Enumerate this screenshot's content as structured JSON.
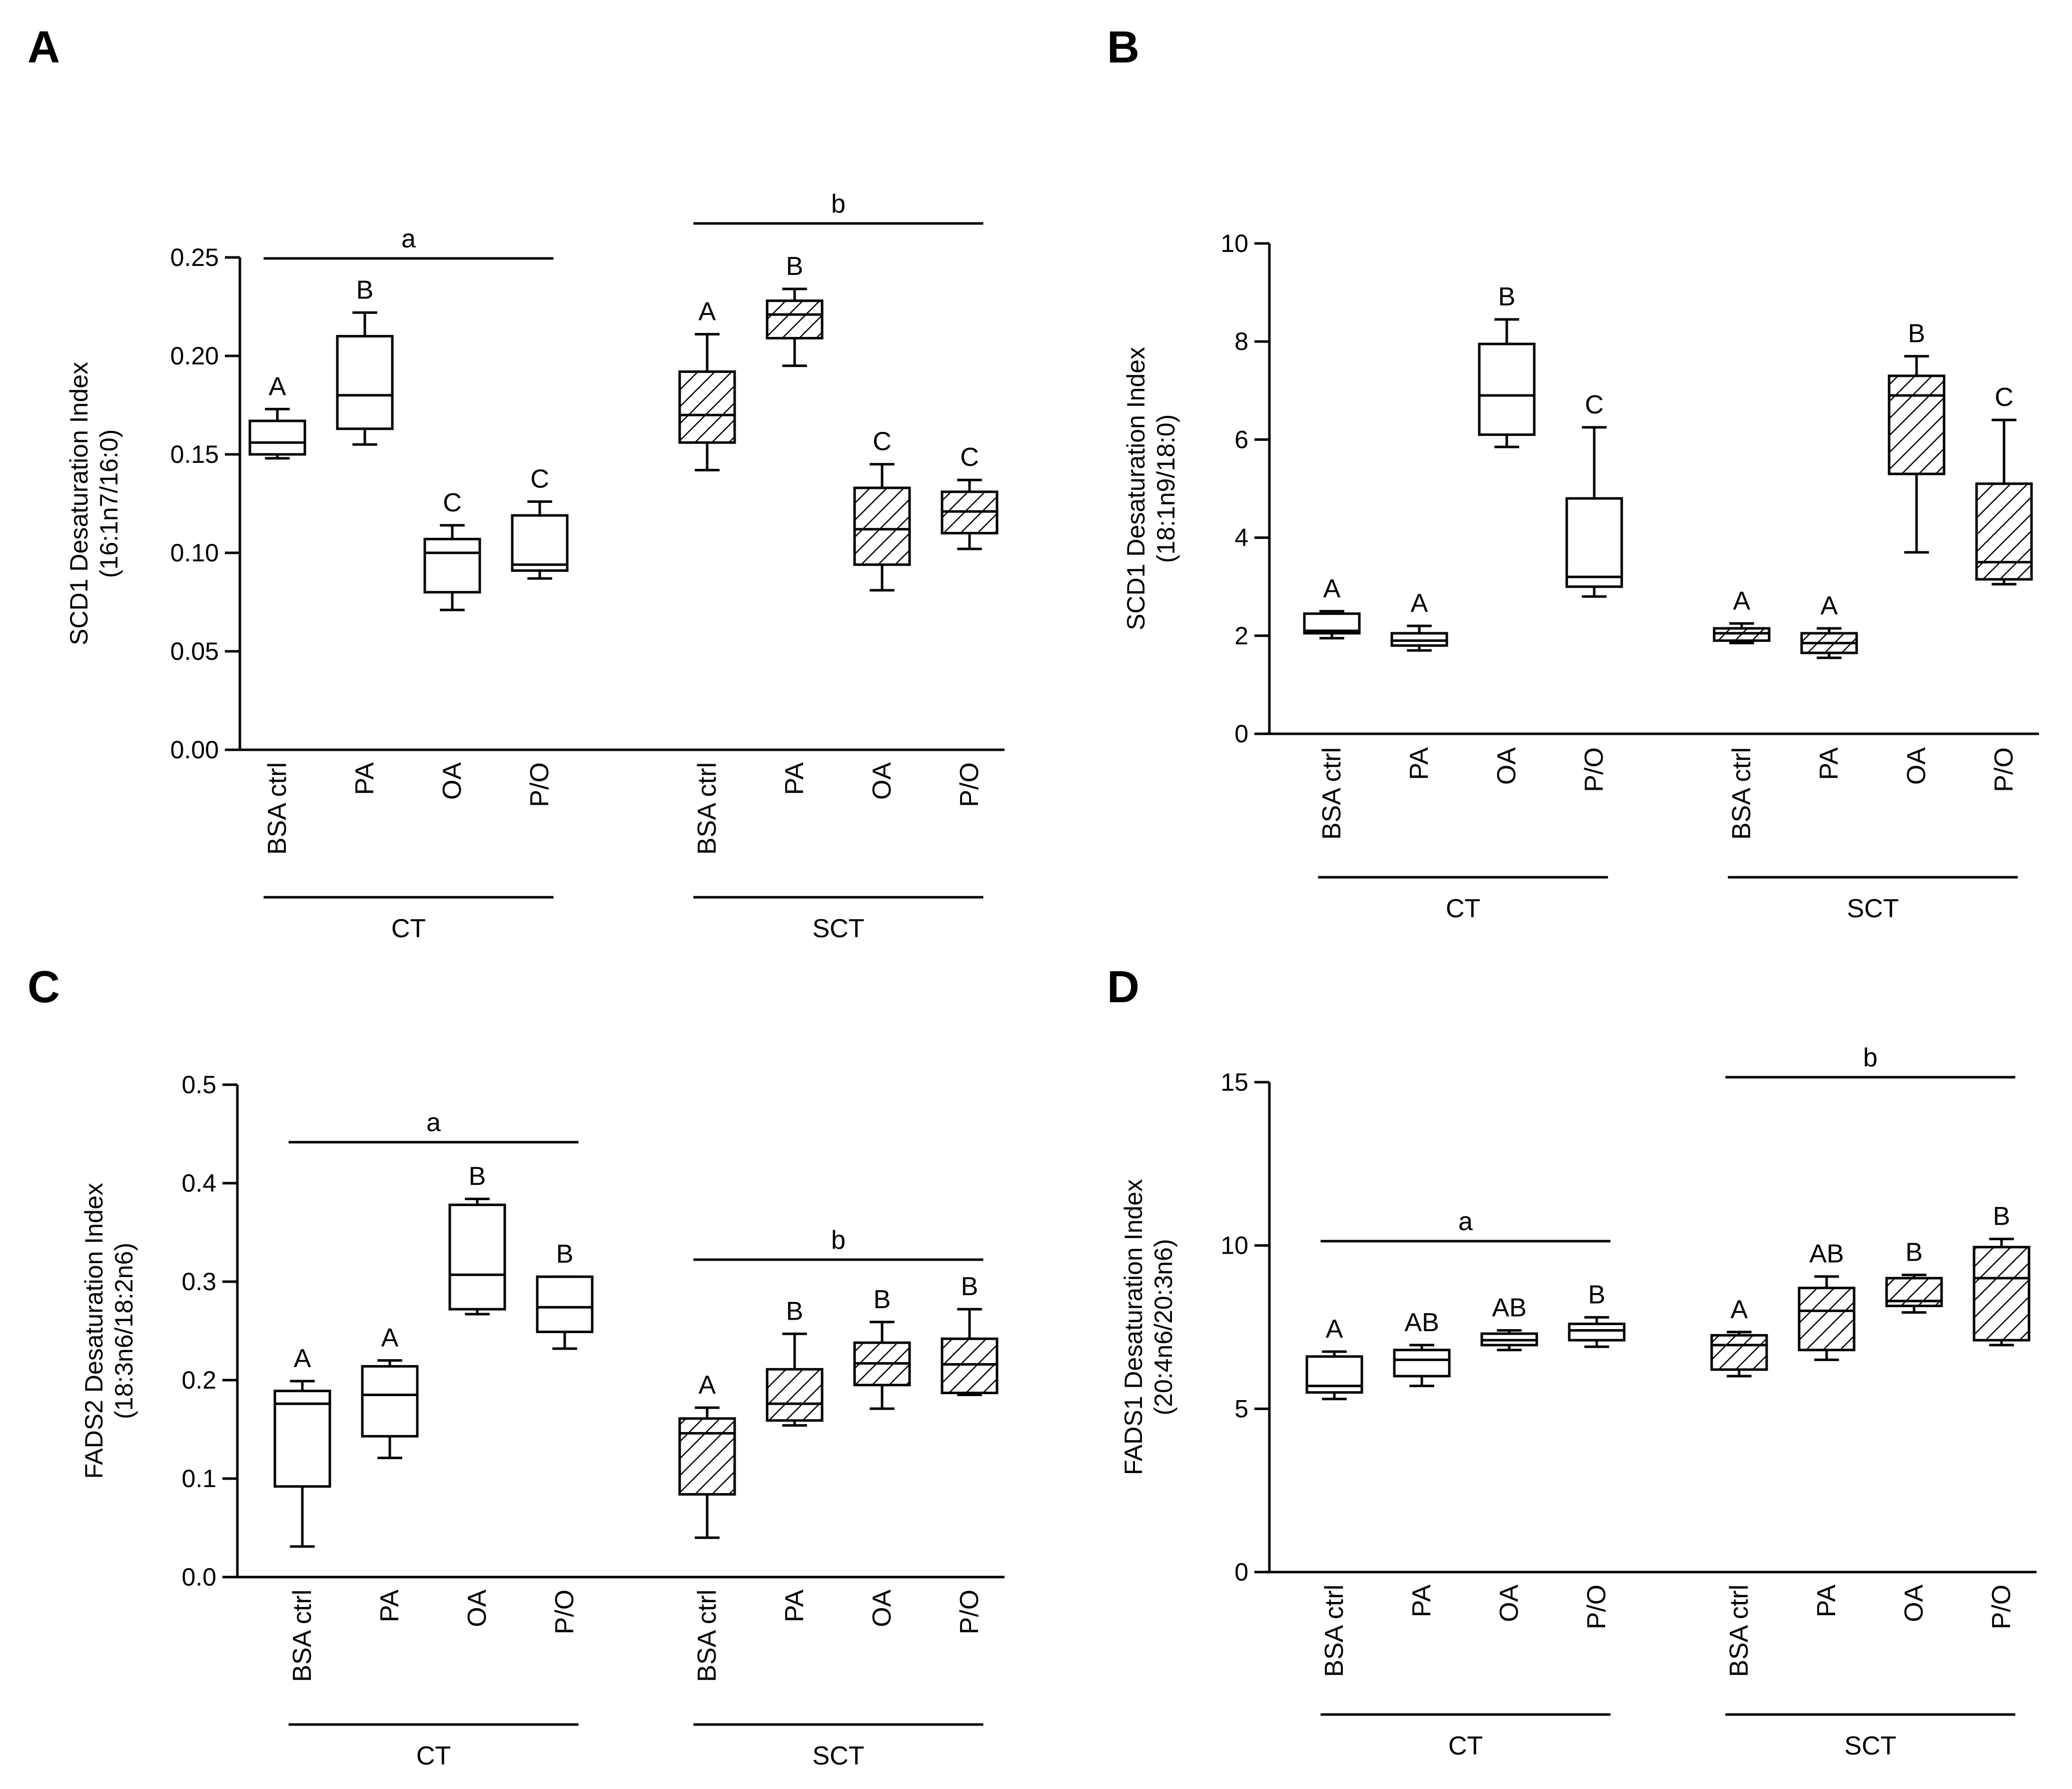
{
  "figure_colors": {
    "stroke": "#000000",
    "background": "#ffffff",
    "hatch": "#000000"
  },
  "chart_data": [
    {
      "panel": "A",
      "type": "box",
      "ylabel_line1": "SCD1 Desaturation Index",
      "ylabel_line2": "(16:1n7/16:0)",
      "ylim": [
        0,
        0.25
      ],
      "yticks": [
        "0.00",
        "0.05",
        "0.10",
        "0.15",
        "0.20",
        "0.25"
      ],
      "groups": [
        {
          "name": "CT",
          "hatched": false,
          "sig": "a",
          "categories": [
            "BSA ctrl",
            "PA",
            "OA",
            "P/O"
          ],
          "boxes": [
            {
              "min": 0.148,
              "q1": 0.15,
              "median": 0.156,
              "q3": 0.167,
              "max": 0.173
            },
            {
              "min": 0.155,
              "q1": 0.163,
              "median": 0.18,
              "q3": 0.21,
              "max": 0.222
            },
            {
              "min": 0.071,
              "q1": 0.08,
              "median": 0.1,
              "q3": 0.107,
              "max": 0.114
            },
            {
              "min": 0.087,
              "q1": 0.091,
              "median": 0.094,
              "q3": 0.119,
              "max": 0.126
            }
          ],
          "letters": [
            "A",
            "B",
            "C",
            "C"
          ]
        },
        {
          "name": "SCT",
          "hatched": true,
          "sig": "b",
          "categories": [
            "BSA ctrl",
            "PA",
            "OA",
            "P/O"
          ],
          "boxes": [
            {
              "min": 0.142,
              "q1": 0.156,
              "median": 0.17,
              "q3": 0.192,
              "max": 0.211
            },
            {
              "min": 0.195,
              "q1": 0.209,
              "median": 0.221,
              "q3": 0.228,
              "max": 0.234
            },
            {
              "min": 0.081,
              "q1": 0.094,
              "median": 0.112,
              "q3": 0.133,
              "max": 0.145
            },
            {
              "min": 0.102,
              "q1": 0.11,
              "median": 0.121,
              "q3": 0.131,
              "max": 0.137
            }
          ],
          "letters": [
            "A",
            "B",
            "C",
            "C"
          ]
        }
      ]
    },
    {
      "panel": "B",
      "type": "box",
      "ylabel_line1": "SCD1 Desaturation Index",
      "ylabel_line2": "(18:1n9/18:0)",
      "ylim": [
        0,
        10
      ],
      "yticks": [
        "0",
        "2",
        "4",
        "6",
        "8",
        "10"
      ],
      "groups": [
        {
          "name": "CT",
          "hatched": false,
          "sig": "",
          "categories": [
            "BSA ctrl",
            "PA",
            "OA",
            "P/O"
          ],
          "boxes": [
            {
              "min": 1.95,
              "q1": 2.05,
              "median": 2.1,
              "q3": 2.45,
              "max": 2.5
            },
            {
              "min": 1.7,
              "q1": 1.8,
              "median": 1.9,
              "q3": 2.05,
              "max": 2.2
            },
            {
              "min": 5.85,
              "q1": 6.1,
              "median": 6.9,
              "q3": 7.95,
              "max": 8.45
            },
            {
              "min": 2.8,
              "q1": 3.0,
              "median": 3.2,
              "q3": 4.8,
              "max": 6.25
            }
          ],
          "letters": [
            "A",
            "A",
            "B",
            "C"
          ]
        },
        {
          "name": "SCT",
          "hatched": true,
          "sig": "",
          "categories": [
            "BSA ctrl",
            "PA",
            "OA",
            "P/O"
          ],
          "boxes": [
            {
              "min": 1.85,
              "q1": 1.9,
              "median": 2.05,
              "q3": 2.15,
              "max": 2.25
            },
            {
              "min": 1.55,
              "q1": 1.65,
              "median": 1.85,
              "q3": 2.05,
              "max": 2.15
            },
            {
              "min": 3.7,
              "q1": 5.3,
              "median": 6.9,
              "q3": 7.3,
              "max": 7.7
            },
            {
              "min": 3.05,
              "q1": 3.15,
              "median": 3.5,
              "q3": 5.1,
              "max": 6.4
            }
          ],
          "letters": [
            "A",
            "A",
            "B",
            "C"
          ]
        }
      ]
    },
    {
      "panel": "C",
      "type": "box",
      "ylabel_line1": "FADS2 Desaturation Index",
      "ylabel_line2": "(18:3n6/18:2n6)",
      "ylim": [
        0,
        0.5
      ],
      "yticks": [
        "0.0",
        "0.1",
        "0.2",
        "0.3",
        "0.4",
        "0.5"
      ],
      "groups": [
        {
          "name": "CT",
          "hatched": false,
          "sig": "a",
          "categories": [
            "BSA ctrl",
            "PA",
            "OA",
            "P/O"
          ],
          "boxes": [
            {
              "min": 0.031,
              "q1": 0.092,
              "median": 0.176,
              "q3": 0.189,
              "max": 0.199
            },
            {
              "min": 0.121,
              "q1": 0.143,
              "median": 0.185,
              "q3": 0.214,
              "max": 0.22
            },
            {
              "min": 0.267,
              "q1": 0.272,
              "median": 0.307,
              "q3": 0.378,
              "max": 0.384
            },
            {
              "min": 0.232,
              "q1": 0.249,
              "median": 0.274,
              "q3": 0.305,
              "max": 0.305
            }
          ],
          "letters": [
            "A",
            "A",
            "B",
            "B"
          ]
        },
        {
          "name": "SCT",
          "hatched": true,
          "sig": "b",
          "categories": [
            "BSA ctrl",
            "PA",
            "OA",
            "P/O"
          ],
          "boxes": [
            {
              "min": 0.04,
              "q1": 0.084,
              "median": 0.146,
              "q3": 0.161,
              "max": 0.172
            },
            {
              "min": 0.154,
              "q1": 0.159,
              "median": 0.176,
              "q3": 0.211,
              "max": 0.247
            },
            {
              "min": 0.171,
              "q1": 0.195,
              "median": 0.217,
              "q3": 0.238,
              "max": 0.259
            },
            {
              "min": 0.185,
              "q1": 0.187,
              "median": 0.216,
              "q3": 0.242,
              "max": 0.272
            }
          ],
          "letters": [
            "A",
            "B",
            "B",
            "B"
          ]
        }
      ]
    },
    {
      "panel": "D",
      "type": "box",
      "ylabel_line1": "FADS1 Desaturation Index",
      "ylabel_line2": "(20:4n6/20:3n6)",
      "ylim": [
        0,
        15
      ],
      "yticks": [
        "0",
        "5",
        "10",
        "15"
      ],
      "groups": [
        {
          "name": "CT",
          "hatched": false,
          "sig": "a",
          "categories": [
            "BSA ctrl",
            "PA",
            "OA",
            "P/O"
          ],
          "boxes": [
            {
              "min": 5.3,
              "q1": 5.5,
              "median": 5.7,
              "q3": 6.6,
              "max": 6.75
            },
            {
              "min": 5.7,
              "q1": 6.0,
              "median": 6.5,
              "q3": 6.8,
              "max": 6.95
            },
            {
              "min": 6.8,
              "q1": 6.95,
              "median": 7.1,
              "q3": 7.3,
              "max": 7.4
            },
            {
              "min": 6.9,
              "q1": 7.1,
              "median": 7.4,
              "q3": 7.6,
              "max": 7.8
            }
          ],
          "letters": [
            "A",
            "AB",
            "AB",
            "B"
          ]
        },
        {
          "name": "SCT",
          "hatched": true,
          "sig": "b",
          "categories": [
            "BSA ctrl",
            "PA",
            "OA",
            "P/O"
          ],
          "boxes": [
            {
              "min": 6.0,
              "q1": 6.2,
              "median": 6.95,
              "q3": 7.25,
              "max": 7.35
            },
            {
              "min": 6.5,
              "q1": 6.8,
              "median": 8.0,
              "q3": 8.7,
              "max": 9.05
            },
            {
              "min": 7.95,
              "q1": 8.15,
              "median": 8.3,
              "q3": 9.0,
              "max": 9.1
            },
            {
              "min": 6.95,
              "q1": 7.1,
              "median": 9.0,
              "q3": 9.95,
              "max": 10.2
            }
          ],
          "letters": [
            "A",
            "AB",
            "B",
            "B"
          ]
        }
      ]
    }
  ]
}
